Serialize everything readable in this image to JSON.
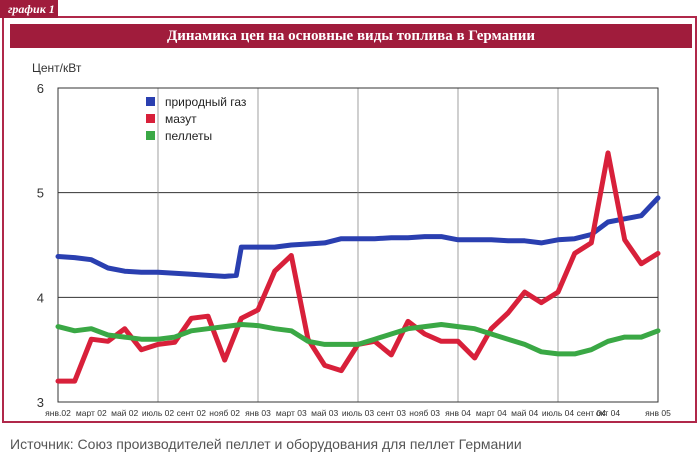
{
  "tag": "график 1",
  "source": "Источник: Союз производителей пеллет и оборудования для пеллет Германии",
  "chart_data": {
    "type": "line",
    "title": "Динамика цен на основные виды топлива в Германии",
    "ylabel": "Цент/кВт",
    "ylim": [
      3,
      6
    ],
    "yticks": [
      "3",
      "4",
      "5",
      "6"
    ],
    "grid": true,
    "legend_position": "top-left",
    "x_labels": [
      "янв.02",
      "март 02",
      "май 02",
      "июль 02",
      "сент 02",
      "нояб 02",
      "янв 03",
      "март 03",
      "май 03",
      "июль 03",
      "сент 03",
      "нояб 03",
      "янв 04",
      "март 04",
      "май 04",
      "июль 04",
      "сент 04",
      "окт 04",
      "янв 05"
    ],
    "x_label_months": [
      0,
      2,
      4,
      6,
      8,
      10,
      12,
      14,
      16,
      18,
      20,
      22,
      24,
      26,
      28,
      30,
      32,
      33,
      36
    ],
    "x_range": [
      0,
      36
    ],
    "series": [
      {
        "name": "природный газ",
        "color": "#2a3fb0",
        "x": [
          0,
          1,
          2,
          3,
          4,
          5,
          6,
          7,
          8,
          9,
          10,
          10.7,
          11,
          12,
          13,
          14,
          15,
          16,
          17,
          18,
          19,
          20,
          21,
          22,
          23,
          24,
          25,
          26,
          27,
          28,
          29,
          30,
          31,
          32,
          33,
          34,
          35,
          36
        ],
        "values": [
          4.39,
          4.38,
          4.36,
          4.28,
          4.25,
          4.24,
          4.24,
          4.23,
          4.22,
          4.21,
          4.2,
          4.21,
          4.48,
          4.48,
          4.48,
          4.5,
          4.51,
          4.52,
          4.56,
          4.56,
          4.56,
          4.57,
          4.57,
          4.58,
          4.58,
          4.55,
          4.55,
          4.55,
          4.54,
          4.54,
          4.52,
          4.55,
          4.56,
          4.6,
          4.72,
          4.75,
          4.78,
          4.95
        ]
      },
      {
        "name": "мазут",
        "color": "#d8203a",
        "x": [
          0,
          1,
          2,
          3,
          4,
          5,
          6,
          7,
          8,
          9,
          10,
          11,
          12,
          13,
          14,
          15,
          16,
          17,
          18,
          19,
          20,
          21,
          22,
          23,
          24,
          25,
          26,
          27,
          28,
          29,
          30,
          31,
          32,
          33,
          34,
          35,
          36
        ],
        "values": [
          3.2,
          3.2,
          3.6,
          3.58,
          3.7,
          3.5,
          3.55,
          3.57,
          3.8,
          3.82,
          3.4,
          3.8,
          3.88,
          4.25,
          4.4,
          3.6,
          3.35,
          3.3,
          3.55,
          3.58,
          3.45,
          3.77,
          3.65,
          3.58,
          3.58,
          3.42,
          3.7,
          3.85,
          4.05,
          3.95,
          4.05,
          4.42,
          4.52,
          5.38,
          4.55,
          4.32,
          4.42
        ]
      },
      {
        "name": "пеллеты",
        "color": "#3aa845",
        "x": [
          0,
          1,
          2,
          3,
          4,
          5,
          6,
          7,
          8,
          9,
          10,
          11,
          12,
          13,
          14,
          15,
          16,
          17,
          18,
          19,
          20,
          21,
          22,
          23,
          24,
          25,
          26,
          27,
          28,
          29,
          30,
          31,
          32,
          33,
          34,
          35,
          36
        ],
        "values": [
          3.72,
          3.68,
          3.7,
          3.64,
          3.62,
          3.6,
          3.6,
          3.62,
          3.68,
          3.7,
          3.72,
          3.74,
          3.73,
          3.7,
          3.68,
          3.58,
          3.55,
          3.55,
          3.55,
          3.6,
          3.65,
          3.7,
          3.72,
          3.74,
          3.72,
          3.7,
          3.65,
          3.6,
          3.55,
          3.48,
          3.46,
          3.46,
          3.5,
          3.58,
          3.62,
          3.62,
          3.68
        ]
      }
    ]
  }
}
